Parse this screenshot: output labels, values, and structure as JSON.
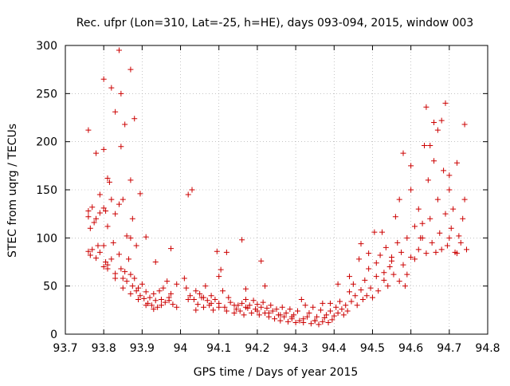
{
  "chart_data": {
    "type": "scatter",
    "title": "Rec. ufpr (Lon=310, Lat=-25, h=HE), days 093-094, 2015, window 003",
    "xlabel": "GPS time / Days of year 2015",
    "ylabel": "STEC from uqrg / TECUs",
    "xlim": [
      93.7,
      94.8
    ],
    "ylim": [
      0,
      300
    ],
    "x_ticks": [
      "93.7",
      "93.8",
      "93.9",
      "94",
      "94.1",
      "94.2",
      "94.3",
      "94.4",
      "94.5",
      "94.6",
      "94.7",
      "94.8"
    ],
    "y_ticks": [
      "0",
      "50",
      "100",
      "150",
      "200",
      "250",
      "300"
    ],
    "grid": true,
    "marker": "plus",
    "color": "#cc0000",
    "points": [
      [
        93.76,
        212
      ],
      [
        93.78,
        188
      ],
      [
        93.79,
        145
      ],
      [
        93.8,
        265
      ],
      [
        93.8,
        192
      ],
      [
        93.81,
        162
      ],
      [
        93.815,
        158
      ],
      [
        93.82,
        256
      ],
      [
        93.83,
        231
      ],
      [
        93.84,
        295
      ],
      [
        93.845,
        250
      ],
      [
        93.845,
        195
      ],
      [
        93.855,
        218
      ],
      [
        93.87,
        275
      ],
      [
        93.88,
        224
      ],
      [
        93.895,
        146
      ],
      [
        93.87,
        160
      ],
      [
        93.875,
        120
      ],
      [
        93.76,
        128
      ],
      [
        93.76,
        122
      ],
      [
        93.765,
        110
      ],
      [
        93.77,
        132
      ],
      [
        93.775,
        116
      ],
      [
        93.78,
        120
      ],
      [
        93.79,
        126
      ],
      [
        93.8,
        131
      ],
      [
        93.805,
        128
      ],
      [
        93.81,
        112
      ],
      [
        93.82,
        140
      ],
      [
        93.83,
        125
      ],
      [
        93.84,
        135
      ],
      [
        93.85,
        140
      ],
      [
        93.86,
        102
      ],
      [
        93.87,
        100
      ],
      [
        93.885,
        92
      ],
      [
        93.91,
        101
      ],
      [
        93.935,
        75
      ],
      [
        93.975,
        89
      ],
      [
        93.76,
        86
      ],
      [
        93.765,
        82
      ],
      [
        93.77,
        88
      ],
      [
        93.78,
        79
      ],
      [
        93.785,
        92
      ],
      [
        93.79,
        85
      ],
      [
        93.8,
        92
      ],
      [
        93.805,
        75
      ],
      [
        93.81,
        72
      ],
      [
        93.82,
        78
      ],
      [
        93.825,
        95
      ],
      [
        93.83,
        63
      ],
      [
        93.84,
        83
      ],
      [
        93.845,
        68
      ],
      [
        93.85,
        58
      ],
      [
        93.855,
        65
      ],
      [
        93.86,
        55
      ],
      [
        93.865,
        78
      ],
      [
        93.87,
        62
      ],
      [
        93.875,
        50
      ],
      [
        93.88,
        58
      ],
      [
        93.885,
        45
      ],
      [
        93.89,
        48
      ],
      [
        93.895,
        40
      ],
      [
        93.9,
        52
      ],
      [
        93.905,
        37
      ],
      [
        93.91,
        44
      ],
      [
        93.915,
        32
      ],
      [
        93.92,
        38
      ],
      [
        93.925,
        30
      ],
      [
        93.93,
        42
      ],
      [
        93.935,
        35
      ],
      [
        93.94,
        28
      ],
      [
        93.945,
        45
      ],
      [
        93.95,
        36
      ],
      [
        93.955,
        48
      ],
      [
        93.96,
        33
      ],
      [
        93.965,
        55
      ],
      [
        93.97,
        38
      ],
      [
        93.975,
        42
      ],
      [
        93.98,
        31
      ],
      [
        93.99,
        52
      ],
      [
        93.8,
        70
      ],
      [
        93.81,
        68
      ],
      [
        93.83,
        58
      ],
      [
        93.85,
        48
      ],
      [
        93.87,
        42
      ],
      [
        93.89,
        36
      ],
      [
        93.91,
        30
      ],
      [
        93.93,
        26
      ],
      [
        93.95,
        30
      ],
      [
        93.97,
        35
      ],
      [
        93.99,
        28
      ],
      [
        94.01,
        58
      ],
      [
        94.015,
        48
      ],
      [
        94.02,
        145
      ],
      [
        94.025,
        40
      ],
      [
        94.03,
        150
      ],
      [
        94.035,
        36
      ],
      [
        94.04,
        45
      ],
      [
        94.045,
        31
      ],
      [
        94.05,
        42
      ],
      [
        94.055,
        38
      ],
      [
        94.06,
        28
      ],
      [
        94.065,
        50
      ],
      [
        94.07,
        35
      ],
      [
        94.075,
        30
      ],
      [
        94.08,
        40
      ],
      [
        94.085,
        25
      ],
      [
        94.09,
        36
      ],
      [
        94.095,
        86
      ],
      [
        94.1,
        32
      ],
      [
        94.1,
        60
      ],
      [
        94.105,
        67
      ],
      [
        94.11,
        45
      ],
      [
        94.115,
        28
      ],
      [
        94.12,
        85
      ],
      [
        94.125,
        38
      ],
      [
        94.13,
        33
      ],
      [
        94.02,
        36
      ],
      [
        94.04,
        25
      ],
      [
        94.06,
        38
      ],
      [
        94.08,
        32
      ],
      [
        94.1,
        28
      ],
      [
        94.12,
        24
      ],
      [
        94.14,
        30
      ],
      [
        94.16,
        98
      ],
      [
        94.17,
        47
      ],
      [
        94.21,
        76
      ],
      [
        94.22,
        50
      ],
      [
        94.14,
        22
      ],
      [
        94.145,
        26
      ],
      [
        94.15,
        30
      ],
      [
        94.155,
        24
      ],
      [
        94.16,
        32
      ],
      [
        94.165,
        20
      ],
      [
        94.17,
        36
      ],
      [
        94.175,
        27
      ],
      [
        94.18,
        30
      ],
      [
        94.185,
        22
      ],
      [
        94.19,
        35
      ],
      [
        94.195,
        26
      ],
      [
        94.2,
        31
      ],
      [
        94.205,
        20
      ],
      [
        94.21,
        28
      ],
      [
        94.215,
        33
      ],
      [
        94.22,
        22
      ],
      [
        94.225,
        27
      ],
      [
        94.23,
        18
      ],
      [
        94.235,
        30
      ],
      [
        94.24,
        24
      ],
      [
        94.245,
        16
      ],
      [
        94.25,
        26
      ],
      [
        94.255,
        20
      ],
      [
        94.26,
        14
      ],
      [
        94.265,
        28
      ],
      [
        94.27,
        18
      ],
      [
        94.275,
        22
      ],
      [
        94.28,
        13
      ],
      [
        94.285,
        26
      ],
      [
        94.29,
        16
      ],
      [
        94.295,
        20
      ],
      [
        94.3,
        12
      ],
      [
        94.305,
        24
      ],
      [
        94.31,
        14
      ],
      [
        94.315,
        36
      ],
      [
        94.32,
        12
      ],
      [
        94.325,
        30
      ],
      [
        94.33,
        18
      ],
      [
        94.335,
        22
      ],
      [
        94.34,
        11
      ],
      [
        94.345,
        28
      ],
      [
        94.35,
        14
      ],
      [
        94.355,
        18
      ],
      [
        94.36,
        10
      ],
      [
        94.365,
        25
      ],
      [
        94.37,
        13
      ],
      [
        94.375,
        17
      ],
      [
        94.38,
        20
      ],
      [
        94.385,
        12
      ],
      [
        94.39,
        24
      ],
      [
        94.395,
        15
      ],
      [
        94.4,
        19
      ],
      [
        94.405,
        28
      ],
      [
        94.41,
        22
      ],
      [
        94.415,
        34
      ],
      [
        94.42,
        26
      ],
      [
        94.425,
        20
      ],
      [
        94.43,
        30
      ],
      [
        94.435,
        24
      ],
      [
        94.17,
        28
      ],
      [
        94.2,
        24
      ],
      [
        94.23,
        22
      ],
      [
        94.26,
        20
      ],
      [
        94.29,
        18
      ],
      [
        94.32,
        16
      ],
      [
        94.35,
        14
      ],
      [
        94.37,
        32
      ],
      [
        94.39,
        32
      ],
      [
        94.41,
        52
      ],
      [
        94.44,
        60
      ],
      [
        94.44,
        44
      ],
      [
        94.445,
        34
      ],
      [
        94.45,
        52
      ],
      [
        94.455,
        40
      ],
      [
        94.46,
        30
      ],
      [
        94.465,
        78
      ],
      [
        94.47,
        46
      ],
      [
        94.475,
        36
      ],
      [
        94.48,
        56
      ],
      [
        94.485,
        40
      ],
      [
        94.49,
        84
      ],
      [
        94.495,
        48
      ],
      [
        94.5,
        38
      ],
      [
        94.505,
        106
      ],
      [
        94.51,
        60
      ],
      [
        94.515,
        45
      ],
      [
        94.52,
        82
      ],
      [
        94.525,
        106
      ],
      [
        94.53,
        56
      ],
      [
        94.535,
        90
      ],
      [
        94.54,
        50
      ],
      [
        94.545,
        70
      ],
      [
        94.55,
        76
      ],
      [
        94.555,
        62
      ],
      [
        94.56,
        122
      ],
      [
        94.565,
        95
      ],
      [
        94.57,
        55
      ],
      [
        94.575,
        85
      ],
      [
        94.58,
        72
      ],
      [
        94.585,
        50
      ],
      [
        94.59,
        62
      ],
      [
        94.6,
        80
      ],
      [
        94.47,
        94
      ],
      [
        94.49,
        68
      ],
      [
        94.51,
        74
      ],
      [
        94.53,
        64
      ],
      [
        94.55,
        80
      ],
      [
        94.57,
        140
      ],
      [
        94.58,
        188
      ],
      [
        94.59,
        100
      ],
      [
        94.6,
        150
      ],
      [
        94.61,
        112
      ],
      [
        94.62,
        130
      ],
      [
        94.63,
        100
      ],
      [
        94.6,
        175
      ],
      [
        94.61,
        78
      ],
      [
        94.62,
        88
      ],
      [
        94.625,
        100
      ],
      [
        94.63,
        115
      ],
      [
        94.635,
        196
      ],
      [
        94.64,
        84
      ],
      [
        94.645,
        160
      ],
      [
        94.65,
        120
      ],
      [
        94.655,
        95
      ],
      [
        94.66,
        180
      ],
      [
        94.665,
        85
      ],
      [
        94.67,
        140
      ],
      [
        94.675,
        105
      ],
      [
        94.68,
        88
      ],
      [
        94.685,
        170
      ],
      [
        94.69,
        125
      ],
      [
        94.695,
        92
      ],
      [
        94.7,
        150
      ],
      [
        94.705,
        110
      ],
      [
        94.71,
        130
      ],
      [
        94.715,
        85
      ],
      [
        94.72,
        178
      ],
      [
        94.725,
        102
      ],
      [
        94.73,
        95
      ],
      [
        94.735,
        120
      ],
      [
        94.74,
        140
      ],
      [
        94.745,
        88
      ],
      [
        94.64,
        236
      ],
      [
        94.66,
        220
      ],
      [
        94.67,
        212
      ],
      [
        94.68,
        222
      ],
      [
        94.69,
        240
      ],
      [
        94.7,
        165
      ],
      [
        94.74,
        218
      ],
      [
        94.65,
        196
      ],
      [
        94.7,
        100
      ],
      [
        94.72,
        84
      ]
    ]
  }
}
